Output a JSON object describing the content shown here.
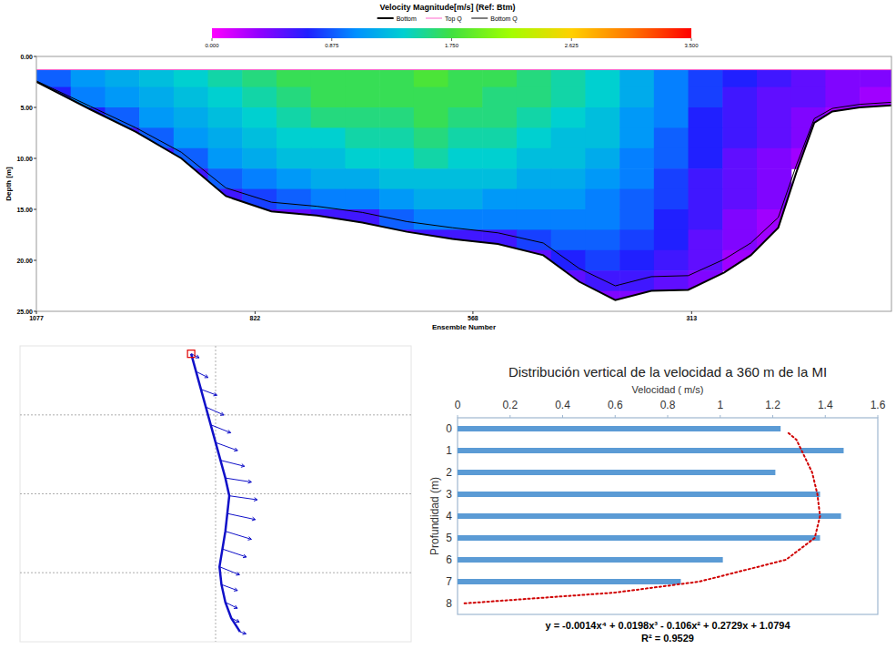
{
  "chart_data": [
    {
      "type": "heatmap",
      "title": "Velocity Magnitude[m/s] (Ref: Btm)",
      "x_label": "Ensemble Number",
      "y_label": "Depth [m]",
      "xlim": [
        1077,
        80
      ],
      "xticks": [
        1077,
        822,
        568,
        313
      ],
      "ylim": [
        0,
        25
      ],
      "yticks": [
        {
          "value": 0,
          "label": "0.00"
        },
        {
          "value": 5,
          "label": "5.00"
        },
        {
          "value": 10,
          "label": "10.00"
        },
        {
          "value": 15,
          "label": "15.00"
        },
        {
          "value": 20,
          "label": "20.00"
        },
        {
          "value": 25,
          "label": "25.00"
        }
      ],
      "x_bins": [
        1077,
        1037,
        997,
        957,
        917,
        877,
        837,
        797,
        757,
        717,
        677,
        637,
        597,
        557,
        517,
        477,
        437,
        397,
        357,
        317,
        277,
        237,
        197,
        157,
        117,
        80
      ],
      "y_bins": [
        1.3,
        3,
        5,
        7,
        9,
        11,
        13,
        15,
        17,
        19,
        21,
        23,
        25
      ],
      "cells": [
        [
          0.9,
          1.1,
          1.2,
          1.3,
          1.4,
          1.5,
          1.6,
          1.7,
          1.7,
          1.7,
          1.7,
          1.8,
          1.7,
          1.7,
          1.6,
          1.5,
          1.4,
          1.2,
          1.0,
          0.8,
          0.7,
          0.6,
          0.5,
          0.4,
          0.4
        ],
        [
          0.7,
          1.0,
          1.1,
          1.2,
          1.3,
          1.4,
          1.5,
          1.6,
          1.7,
          1.7,
          1.7,
          1.7,
          1.7,
          1.6,
          1.6,
          1.5,
          1.4,
          1.2,
          1.0,
          0.8,
          0.6,
          0.5,
          0.5,
          0.4,
          0.3
        ],
        [
          null,
          0.7,
          0.9,
          1.1,
          1.2,
          1.3,
          1.4,
          1.5,
          1.6,
          1.6,
          1.6,
          1.7,
          1.6,
          1.6,
          1.5,
          1.4,
          1.3,
          1.1,
          1.0,
          0.7,
          0.6,
          0.5,
          0.4,
          0.3,
          null
        ],
        [
          null,
          null,
          0.6,
          0.9,
          1.1,
          1.2,
          1.3,
          1.4,
          1.4,
          1.5,
          1.5,
          1.6,
          1.5,
          1.5,
          1.4,
          1.3,
          1.3,
          1.1,
          0.9,
          0.7,
          0.6,
          0.5,
          0.4,
          null,
          null
        ],
        [
          null,
          null,
          null,
          0.6,
          0.9,
          1.1,
          1.2,
          1.3,
          1.3,
          1.4,
          1.4,
          1.5,
          1.4,
          1.4,
          1.3,
          1.3,
          1.2,
          1.0,
          0.9,
          0.7,
          0.5,
          0.4,
          0.3,
          null,
          null
        ],
        [
          null,
          null,
          null,
          null,
          0.6,
          0.9,
          1.0,
          1.1,
          1.2,
          1.2,
          1.3,
          1.3,
          1.3,
          1.3,
          1.2,
          1.2,
          1.1,
          1.0,
          0.8,
          0.6,
          0.5,
          0.4,
          null,
          null,
          null
        ],
        [
          null,
          null,
          null,
          null,
          null,
          0.6,
          0.8,
          0.9,
          1.0,
          1.0,
          1.1,
          1.2,
          1.2,
          1.1,
          1.1,
          1.1,
          1.0,
          0.9,
          0.8,
          0.6,
          0.5,
          0.4,
          null,
          null,
          null
        ],
        [
          null,
          null,
          null,
          null,
          null,
          null,
          0.5,
          0.5,
          0.6,
          0.6,
          0.9,
          1.0,
          1.0,
          1.0,
          1.0,
          1.0,
          1.0,
          0.9,
          0.7,
          0.6,
          0.4,
          0.3,
          null,
          null,
          null
        ],
        [
          null,
          null,
          null,
          null,
          null,
          null,
          null,
          null,
          null,
          null,
          0.5,
          0.6,
          0.6,
          0.6,
          0.8,
          0.9,
          0.9,
          0.8,
          0.7,
          0.5,
          0.4,
          0.3,
          null,
          null,
          null
        ],
        [
          null,
          null,
          null,
          null,
          null,
          null,
          null,
          null,
          null,
          null,
          null,
          null,
          null,
          null,
          0.5,
          0.7,
          0.8,
          0.7,
          0.6,
          0.5,
          0.3,
          null,
          null,
          null,
          null
        ],
        [
          null,
          null,
          null,
          null,
          null,
          null,
          null,
          null,
          null,
          null,
          null,
          null,
          null,
          null,
          null,
          0.5,
          0.6,
          0.6,
          0.5,
          0.4,
          null,
          null,
          null,
          null,
          null
        ],
        [
          null,
          null,
          null,
          null,
          null,
          null,
          null,
          null,
          null,
          null,
          null,
          null,
          null,
          null,
          null,
          null,
          0.4,
          0.4,
          0.4,
          null,
          null,
          null,
          null,
          null,
          null
        ]
      ],
      "colorbar": {
        "range": [
          0,
          3.5
        ],
        "ticks": [
          {
            "value": 0,
            "label": "0.000"
          },
          0.875,
          {
            "value": 1.75,
            "label": "1.750"
          },
          2.625,
          {
            "value": 3.5,
            "label": "3.500"
          }
        ]
      },
      "legend": "top",
      "series": [
        {
          "name": "Bottom",
          "type": "line",
          "color": "#000000",
          "x": [
            1077,
            1014,
            961,
            908,
            856,
            803,
            750,
            697,
            645,
            592,
            539,
            486,
            444,
            402,
            360,
            317,
            275,
            244,
            212,
            191,
            170,
            149,
            117,
            80
          ],
          "values": [
            2.5,
            5.2,
            7.4,
            10.0,
            13.7,
            15.2,
            15.6,
            16.3,
            17.2,
            17.9,
            18.4,
            19.5,
            22.1,
            23.9,
            23.0,
            22.9,
            21.2,
            19.5,
            16.8,
            11.4,
            6.5,
            5.4,
            5.0,
            4.8
          ]
        },
        {
          "name": "Top Q",
          "type": "line",
          "color": "#ff66cc",
          "x": [
            1077,
            80
          ],
          "values": [
            1.3,
            1.3
          ]
        },
        {
          "name": "Bottom Q",
          "type": "line",
          "color": "#000000",
          "x": [
            1077,
            1014,
            961,
            908,
            856,
            803,
            750,
            697,
            645,
            592,
            539,
            486,
            444,
            402,
            360,
            317,
            275,
            244,
            212,
            191,
            170,
            149,
            117,
            80
          ],
          "values": [
            2.4,
            4.9,
            7.0,
            9.4,
            12.9,
            14.3,
            14.7,
            15.3,
            16.2,
            16.8,
            17.3,
            18.3,
            20.8,
            22.5,
            21.6,
            21.5,
            19.9,
            18.3,
            15.8,
            10.7,
            6.1,
            5.1,
            4.7,
            4.5
          ]
        }
      ]
    },
    {
      "type": "vector",
      "color": "#1010c8",
      "xlim": [
        -200,
        200
      ],
      "ylim": [
        -150,
        150
      ],
      "xticks": [
        0
      ],
      "yticks": [
        -80,
        0,
        80
      ],
      "grid": true,
      "tick_labels": false,
      "x": [
        -25,
        -20,
        -15,
        -10,
        -5,
        0,
        5,
        10,
        14,
        12,
        10,
        7,
        4,
        6,
        10,
        16,
        25
      ],
      "y": [
        142,
        124,
        106,
        88,
        70,
        52,
        34,
        16,
        -2,
        -20,
        -38,
        -56,
        -74,
        -92,
        -110,
        -126,
        -140
      ],
      "u": [
        0.4,
        0.6,
        0.8,
        0.9,
        1.0,
        1.1,
        1.2,
        1.3,
        1.4,
        1.4,
        1.3,
        1.2,
        1.0,
        0.8,
        0.6,
        0.4,
        0.3
      ],
      "v": [
        -0.2,
        -0.3,
        -0.3,
        -0.4,
        -0.4,
        -0.4,
        -0.3,
        -0.2,
        -0.2,
        -0.3,
        -0.4,
        -0.4,
        -0.4,
        -0.3,
        -0.3,
        -0.2,
        -0.1
      ]
    },
    {
      "type": "bar",
      "orientation": "horizontal",
      "title": "Distribución vertical de la velocidad a 360 m de la MI",
      "x_label": "Velocidad ( m/s)",
      "y_label": "Profundidad (m)",
      "categories": [
        "0",
        "1",
        "2",
        "3",
        "4",
        "5",
        "6",
        "7",
        "8"
      ],
      "values": [
        1.23,
        1.47,
        1.21,
        1.38,
        1.46,
        1.38,
        1.01,
        0.85,
        null
      ],
      "color": "#5b9bd5",
      "xlim": [
        0,
        1.6
      ],
      "xticks": [
        0,
        0.2,
        0.4,
        0.6,
        0.8,
        1,
        1.2,
        1.4,
        1.6
      ],
      "grid": false,
      "trendline": {
        "color": "#d00000",
        "line_style": "dotted",
        "depth": [
          0.2,
          0.5,
          1,
          2,
          3,
          4,
          5,
          6,
          7,
          7.5,
          8
        ],
        "values": [
          1.26,
          1.29,
          1.31,
          1.35,
          1.37,
          1.38,
          1.36,
          1.25,
          0.92,
          0.6,
          0.02
        ]
      },
      "equation": "y = -0.0014x⁴ + 0.0198x³ - 0.106x² + 0.2729x + 1.0794",
      "r_squared": "R² = 0.9529"
    }
  ]
}
